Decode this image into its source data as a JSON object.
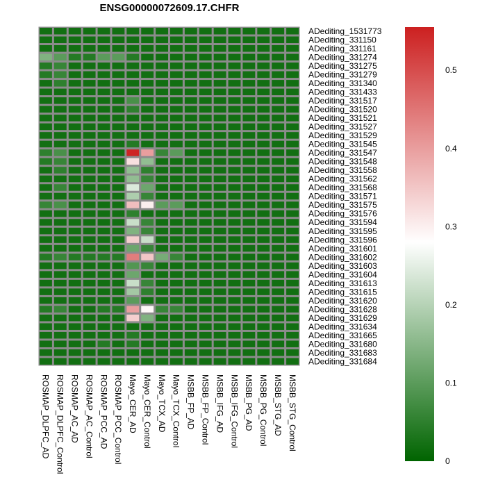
{
  "chart_data": {
    "type": "heatmap",
    "title": "ENSG00000072609.17.CHFR",
    "columns": [
      "ROSMAP_DLPFC_AD",
      "ROSMAP_DLPFC_Control",
      "ROSMAP_AC_AD",
      "ROSMAP_AC_Control",
      "ROSMAP_PCC_AD",
      "ROSMAP_PCC_Control",
      "Mayo_CER_AD",
      "Mayo_CER_Control",
      "Mayo_TCX_AD",
      "Mayo_TCX_Control",
      "MSBB_FP_AD",
      "MSBB_FP_Control",
      "MSBB_IFG_AD",
      "MSBB_IFG_Control",
      "MSBB_PG_AD",
      "MSBB_PG_Control",
      "MSBB_STG_AD",
      "MSBB_STG_Control"
    ],
    "rows": [
      "ADediting_1531773",
      "ADediting_331150",
      "ADediting_331161",
      "ADediting_331274",
      "ADediting_331275",
      "ADediting_331279",
      "ADediting_331340",
      "ADediting_331433",
      "ADediting_331517",
      "ADediting_331520",
      "ADediting_331521",
      "ADediting_331527",
      "ADediting_331529",
      "ADediting_331545",
      "ADediting_331547",
      "ADediting_331548",
      "ADediting_331558",
      "ADediting_331562",
      "ADediting_331568",
      "ADediting_331571",
      "ADediting_331575",
      "ADediting_331576",
      "ADediting_331594",
      "ADediting_331595",
      "ADediting_331596",
      "ADediting_331601",
      "ADediting_331602",
      "ADediting_331603",
      "ADediting_331604",
      "ADediting_331613",
      "ADediting_331615",
      "ADediting_331620",
      "ADediting_331628",
      "ADediting_331629",
      "ADediting_331634",
      "ADediting_331665",
      "ADediting_331680",
      "ADediting_331683",
      "ADediting_331684"
    ],
    "values": [
      [
        0.02,
        0.02,
        0.02,
        0.02,
        0.02,
        0.02,
        0.02,
        0.02,
        0.02,
        0.02,
        0.02,
        0.02,
        0.02,
        0.02,
        0.02,
        0.02,
        0.02,
        0.02
      ],
      [
        0.02,
        0.02,
        0.02,
        0.02,
        0.02,
        0.02,
        0.02,
        0.02,
        0.02,
        0.02,
        0.02,
        0.02,
        0.02,
        0.02,
        0.02,
        0.02,
        0.02,
        0.02
      ],
      [
        0.02,
        0.02,
        0.02,
        0.02,
        0.02,
        0.02,
        0.02,
        0.02,
        0.02,
        0.02,
        0.02,
        0.02,
        0.02,
        0.02,
        0.02,
        0.02,
        0.02,
        0.02
      ],
      [
        0.14,
        0.1,
        0.04,
        0.04,
        0.1,
        0.1,
        0.04,
        0.02,
        0.02,
        0.02,
        0.02,
        0.02,
        0.02,
        0.02,
        0.02,
        0.02,
        0.02,
        0.02
      ],
      [
        0.04,
        0.06,
        0.02,
        0.02,
        0.02,
        0.02,
        0.02,
        0.02,
        0.02,
        0.02,
        0.02,
        0.02,
        0.02,
        0.02,
        0.02,
        0.02,
        0.02,
        0.02
      ],
      [
        0.04,
        0.06,
        0.02,
        0.02,
        0.02,
        0.02,
        0.02,
        0.02,
        0.02,
        0.02,
        0.02,
        0.02,
        0.02,
        0.02,
        0.02,
        0.02,
        0.02,
        0.02
      ],
      [
        0.02,
        0.05,
        0.02,
        0.02,
        0.02,
        0.02,
        0.02,
        0.02,
        0.02,
        0.02,
        0.02,
        0.02,
        0.02,
        0.02,
        0.02,
        0.02,
        0.02,
        0.02
      ],
      [
        0.02,
        0.02,
        0.02,
        0.02,
        0.02,
        0.02,
        0.02,
        0.02,
        0.02,
        0.02,
        0.02,
        0.02,
        0.02,
        0.02,
        0.02,
        0.02,
        0.02,
        0.02
      ],
      [
        0.02,
        0.02,
        0.02,
        0.02,
        0.02,
        0.02,
        0.08,
        0.02,
        0.02,
        0.02,
        0.02,
        0.02,
        0.02,
        0.02,
        0.02,
        0.02,
        0.02,
        0.02
      ],
      [
        0.02,
        0.02,
        0.02,
        0.02,
        0.02,
        0.02,
        0.05,
        0.02,
        0.02,
        0.02,
        0.02,
        0.02,
        0.02,
        0.02,
        0.02,
        0.02,
        0.02,
        0.02
      ],
      [
        0.02,
        0.02,
        0.02,
        0.02,
        0.02,
        0.02,
        0.02,
        0.02,
        0.02,
        0.02,
        0.02,
        0.02,
        0.02,
        0.02,
        0.02,
        0.02,
        0.02,
        0.02
      ],
      [
        0.02,
        0.02,
        0.02,
        0.02,
        0.02,
        0.02,
        0.02,
        0.02,
        0.02,
        0.02,
        0.02,
        0.02,
        0.02,
        0.02,
        0.02,
        0.02,
        0.02,
        0.02
      ],
      [
        0.02,
        0.02,
        0.02,
        0.02,
        0.02,
        0.02,
        0.02,
        0.02,
        0.02,
        0.02,
        0.02,
        0.02,
        0.02,
        0.02,
        0.02,
        0.02,
        0.02,
        0.02
      ],
      [
        0.02,
        0.02,
        0.02,
        0.02,
        0.02,
        0.02,
        0.04,
        0.02,
        0.02,
        0.02,
        0.02,
        0.02,
        0.02,
        0.02,
        0.02,
        0.02,
        0.02,
        0.02
      ],
      [
        0.05,
        0.08,
        0.02,
        0.02,
        0.02,
        0.02,
        0.55,
        0.4,
        0.06,
        0.1,
        0.02,
        0.02,
        0.02,
        0.02,
        0.02,
        0.02,
        0.02,
        0.02
      ],
      [
        0.04,
        0.06,
        0.02,
        0.02,
        0.02,
        0.02,
        0.32,
        0.16,
        0.02,
        0.02,
        0.02,
        0.02,
        0.02,
        0.02,
        0.02,
        0.02,
        0.02,
        0.02
      ],
      [
        0.02,
        0.05,
        0.02,
        0.02,
        0.02,
        0.02,
        0.16,
        0.05,
        0.02,
        0.02,
        0.02,
        0.02,
        0.02,
        0.02,
        0.02,
        0.02,
        0.02,
        0.02
      ],
      [
        0.02,
        0.02,
        0.02,
        0.02,
        0.02,
        0.02,
        0.16,
        0.06,
        0.02,
        0.02,
        0.02,
        0.02,
        0.02,
        0.02,
        0.02,
        0.02,
        0.02,
        0.02
      ],
      [
        0.02,
        0.06,
        0.02,
        0.02,
        0.02,
        0.02,
        0.24,
        0.12,
        0.02,
        0.02,
        0.02,
        0.02,
        0.02,
        0.02,
        0.02,
        0.02,
        0.02,
        0.02
      ],
      [
        0.02,
        0.02,
        0.02,
        0.02,
        0.02,
        0.02,
        0.19,
        0.06,
        0.02,
        0.02,
        0.02,
        0.02,
        0.02,
        0.02,
        0.02,
        0.02,
        0.02,
        0.02
      ],
      [
        0.06,
        0.08,
        0.02,
        0.02,
        0.02,
        0.02,
        0.36,
        0.3,
        0.1,
        0.1,
        0.02,
        0.02,
        0.02,
        0.02,
        0.02,
        0.02,
        0.02,
        0.02
      ],
      [
        0.02,
        0.02,
        0.02,
        0.02,
        0.02,
        0.02,
        0.05,
        0.02,
        0.02,
        0.02,
        0.02,
        0.02,
        0.02,
        0.02,
        0.02,
        0.02,
        0.02,
        0.02
      ],
      [
        0.02,
        0.02,
        0.02,
        0.02,
        0.02,
        0.02,
        0.22,
        0.06,
        0.02,
        0.02,
        0.02,
        0.02,
        0.02,
        0.02,
        0.02,
        0.02,
        0.02,
        0.02
      ],
      [
        0.02,
        0.02,
        0.02,
        0.02,
        0.02,
        0.02,
        0.14,
        0.06,
        0.02,
        0.02,
        0.02,
        0.02,
        0.02,
        0.02,
        0.02,
        0.02,
        0.02,
        0.02
      ],
      [
        0.02,
        0.02,
        0.02,
        0.02,
        0.02,
        0.02,
        0.34,
        0.22,
        0.02,
        0.02,
        0.02,
        0.02,
        0.02,
        0.02,
        0.02,
        0.02,
        0.02,
        0.02
      ],
      [
        0.02,
        0.02,
        0.02,
        0.02,
        0.02,
        0.02,
        0.12,
        0.06,
        0.02,
        0.02,
        0.02,
        0.02,
        0.02,
        0.02,
        0.02,
        0.02,
        0.02,
        0.02
      ],
      [
        0.04,
        0.06,
        0.04,
        0.04,
        0.04,
        0.04,
        0.44,
        0.35,
        0.13,
        0.06,
        0.02,
        0.02,
        0.02,
        0.02,
        0.02,
        0.02,
        0.02,
        0.02
      ],
      [
        0.02,
        0.02,
        0.02,
        0.02,
        0.02,
        0.02,
        0.09,
        0.06,
        0.02,
        0.02,
        0.02,
        0.02,
        0.02,
        0.02,
        0.02,
        0.02,
        0.02,
        0.02
      ],
      [
        0.02,
        0.02,
        0.02,
        0.02,
        0.02,
        0.02,
        0.12,
        0.02,
        0.02,
        0.02,
        0.02,
        0.02,
        0.02,
        0.02,
        0.02,
        0.02,
        0.02,
        0.02
      ],
      [
        0.02,
        0.02,
        0.02,
        0.02,
        0.02,
        0.02,
        0.22,
        0.06,
        0.02,
        0.02,
        0.02,
        0.02,
        0.02,
        0.02,
        0.02,
        0.02,
        0.02,
        0.02
      ],
      [
        0.02,
        0.02,
        0.02,
        0.02,
        0.02,
        0.02,
        0.18,
        0.05,
        0.02,
        0.02,
        0.02,
        0.02,
        0.02,
        0.02,
        0.02,
        0.02,
        0.02,
        0.02
      ],
      [
        0.02,
        0.02,
        0.02,
        0.02,
        0.02,
        0.02,
        0.1,
        0.02,
        0.02,
        0.02,
        0.02,
        0.02,
        0.02,
        0.02,
        0.02,
        0.02,
        0.02,
        0.02
      ],
      [
        0.04,
        0.06,
        0.02,
        0.02,
        0.04,
        0.04,
        0.4,
        0.29,
        0.06,
        0.06,
        0.02,
        0.02,
        0.02,
        0.02,
        0.02,
        0.02,
        0.02,
        0.02
      ],
      [
        0.02,
        0.02,
        0.02,
        0.02,
        0.02,
        0.02,
        0.34,
        0.14,
        0.02,
        0.02,
        0.02,
        0.02,
        0.02,
        0.02,
        0.02,
        0.02,
        0.02,
        0.02
      ],
      [
        0.02,
        0.02,
        0.02,
        0.02,
        0.02,
        0.02,
        0.02,
        0.02,
        0.02,
        0.02,
        0.02,
        0.02,
        0.02,
        0.02,
        0.02,
        0.02,
        0.02,
        0.02
      ],
      [
        0.02,
        0.02,
        0.02,
        0.02,
        0.02,
        0.02,
        0.04,
        0.02,
        0.02,
        0.02,
        0.02,
        0.02,
        0.02,
        0.02,
        0.02,
        0.02,
        0.02,
        0.02
      ],
      [
        0.02,
        0.02,
        0.02,
        0.02,
        0.04,
        0.02,
        0.04,
        0.02,
        0.02,
        0.02,
        0.02,
        0.02,
        0.02,
        0.02,
        0.02,
        0.02,
        0.02,
        0.02
      ],
      [
        0.02,
        0.02,
        0.02,
        0.02,
        0.02,
        0.02,
        0.02,
        0.02,
        0.02,
        0.02,
        0.02,
        0.02,
        0.02,
        0.02,
        0.02,
        0.02,
        0.02,
        0.02
      ],
      [
        0.02,
        0.02,
        0.02,
        0.02,
        0.02,
        0.02,
        0.02,
        0.02,
        0.02,
        0.02,
        0.02,
        0.02,
        0.02,
        0.02,
        0.02,
        0.02,
        0.02,
        0.02
      ]
    ],
    "colorscale": {
      "min": 0,
      "mid": 0.28,
      "max": 0.555,
      "low_color": "#006400",
      "mid_color": "#FFFFFF",
      "high_color": "#CC2020",
      "ticks": [
        0,
        0.1,
        0.2,
        0.3,
        0.4,
        0.5
      ]
    },
    "cell_border_color": "#8C8C8C",
    "legend_position": "right"
  }
}
